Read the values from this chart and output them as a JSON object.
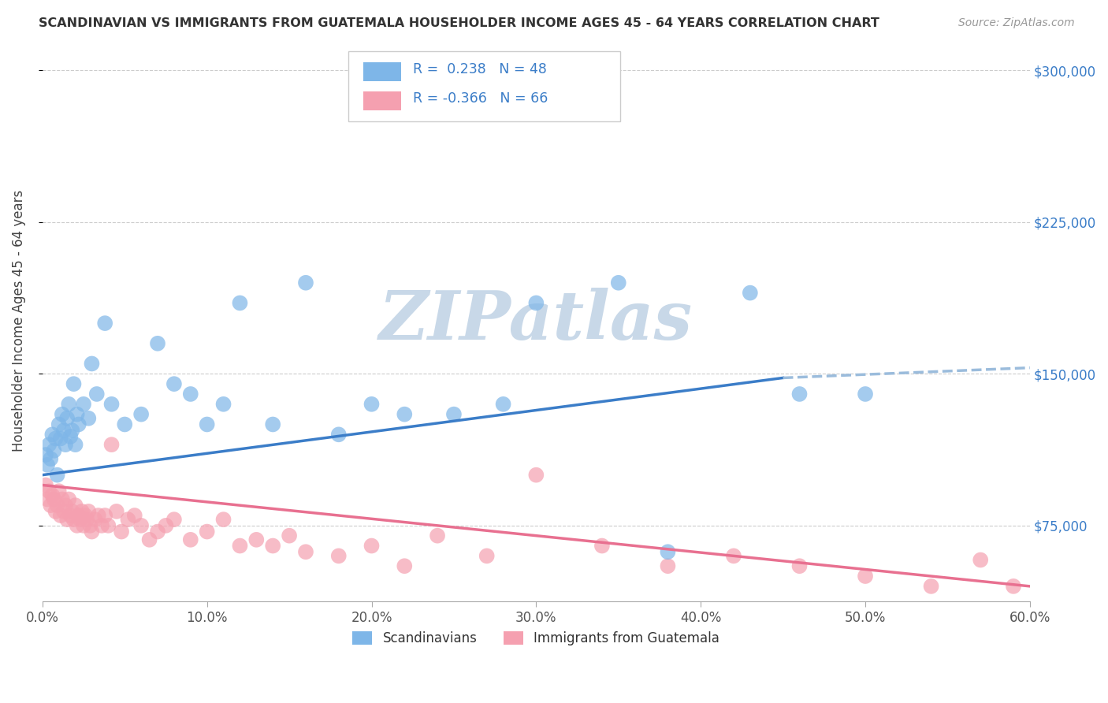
{
  "title": "SCANDINAVIAN VS IMMIGRANTS FROM GUATEMALA HOUSEHOLDER INCOME AGES 45 - 64 YEARS CORRELATION CHART",
  "source": "Source: ZipAtlas.com",
  "ylabel": "Householder Income Ages 45 - 64 years",
  "xlabel_ticks": [
    "0.0%",
    "10.0%",
    "20.0%",
    "30.0%",
    "40.0%",
    "50.0%",
    "60.0%"
  ],
  "ytick_labels": [
    "$75,000",
    "$150,000",
    "$225,000",
    "$300,000"
  ],
  "ytick_values": [
    75000,
    150000,
    225000,
    300000
  ],
  "xlim": [
    0.0,
    0.6
  ],
  "ylim": [
    37500,
    315000
  ],
  "R1": 0.238,
  "N1": 48,
  "R2": -0.366,
  "N2": 66,
  "color_blue": "#7EB6E8",
  "color_pink": "#F5A0B0",
  "line_blue": "#3B7DC8",
  "line_pink": "#E87090",
  "line_blue_dash": "#9BBCDC",
  "watermark_text": "ZIPatlas",
  "watermark_color": "#C8D8E8",
  "legend_label1": "Scandinavians",
  "legend_label2": "Immigrants from Guatemala",
  "scand_x": [
    0.002,
    0.003,
    0.004,
    0.005,
    0.006,
    0.007,
    0.008,
    0.009,
    0.01,
    0.011,
    0.012,
    0.013,
    0.014,
    0.015,
    0.016,
    0.017,
    0.018,
    0.019,
    0.02,
    0.021,
    0.022,
    0.025,
    0.028,
    0.03,
    0.033,
    0.038,
    0.042,
    0.05,
    0.06,
    0.07,
    0.08,
    0.09,
    0.1,
    0.11,
    0.12,
    0.14,
    0.16,
    0.18,
    0.2,
    0.22,
    0.25,
    0.28,
    0.3,
    0.35,
    0.38,
    0.43,
    0.46,
    0.5
  ],
  "scand_y": [
    110000,
    105000,
    115000,
    108000,
    120000,
    112000,
    118000,
    100000,
    125000,
    118000,
    130000,
    122000,
    115000,
    128000,
    135000,
    119000,
    122000,
    145000,
    115000,
    130000,
    125000,
    135000,
    128000,
    155000,
    140000,
    175000,
    135000,
    125000,
    130000,
    165000,
    145000,
    140000,
    125000,
    135000,
    185000,
    125000,
    195000,
    120000,
    135000,
    130000,
    130000,
    135000,
    185000,
    195000,
    62000,
    190000,
    140000,
    140000
  ],
  "guate_x": [
    0.002,
    0.003,
    0.004,
    0.005,
    0.006,
    0.007,
    0.008,
    0.009,
    0.01,
    0.011,
    0.012,
    0.013,
    0.014,
    0.015,
    0.016,
    0.017,
    0.018,
    0.019,
    0.02,
    0.021,
    0.022,
    0.023,
    0.024,
    0.025,
    0.026,
    0.027,
    0.028,
    0.029,
    0.03,
    0.032,
    0.034,
    0.036,
    0.038,
    0.04,
    0.042,
    0.045,
    0.048,
    0.052,
    0.056,
    0.06,
    0.065,
    0.07,
    0.075,
    0.08,
    0.09,
    0.1,
    0.11,
    0.12,
    0.13,
    0.14,
    0.15,
    0.16,
    0.18,
    0.2,
    0.22,
    0.24,
    0.27,
    0.3,
    0.34,
    0.38,
    0.42,
    0.46,
    0.5,
    0.54,
    0.57,
    0.59
  ],
  "guate_y": [
    95000,
    88000,
    92000,
    85000,
    90000,
    88000,
    82000,
    85000,
    92000,
    80000,
    88000,
    82000,
    85000,
    78000,
    88000,
    80000,
    82000,
    78000,
    85000,
    75000,
    80000,
    78000,
    82000,
    75000,
    80000,
    78000,
    82000,
    75000,
    72000,
    78000,
    80000,
    75000,
    80000,
    75000,
    115000,
    82000,
    72000,
    78000,
    80000,
    75000,
    68000,
    72000,
    75000,
    78000,
    68000,
    72000,
    78000,
    65000,
    68000,
    65000,
    70000,
    62000,
    60000,
    65000,
    55000,
    70000,
    60000,
    100000,
    65000,
    55000,
    60000,
    55000,
    50000,
    45000,
    58000,
    45000
  ]
}
